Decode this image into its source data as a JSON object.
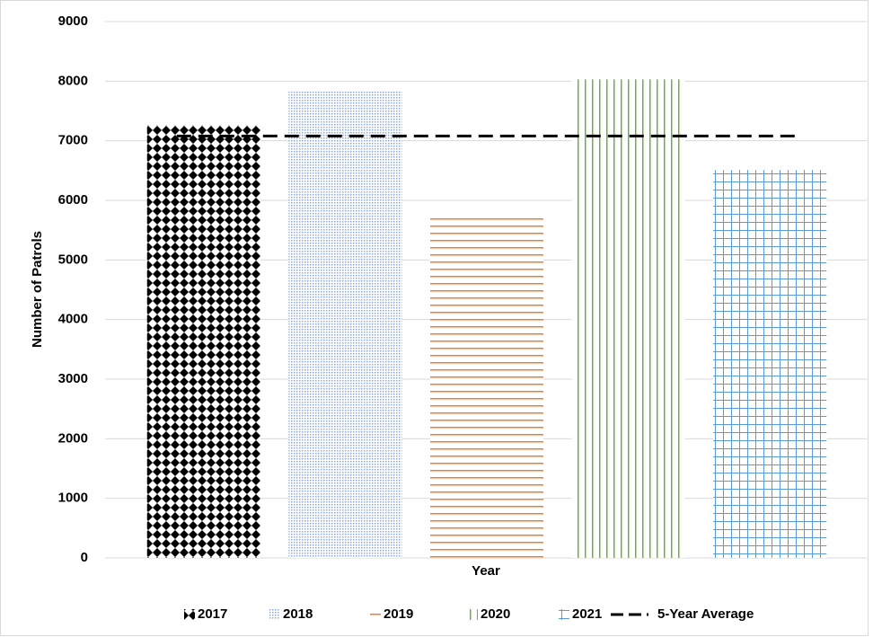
{
  "chart_data": {
    "type": "bar",
    "x_label": "Year",
    "y_label": "Number of Patrols",
    "categories": [
      "2017",
      "2018",
      "2019",
      "2020",
      "2021"
    ],
    "values": [
      7260,
      7830,
      5770,
      8030,
      6510
    ],
    "colors": [
      "#000000",
      "#8ea9db",
      "#ed7d31",
      "#70ad47",
      "#5b9bd5"
    ],
    "patterns": [
      "diamond",
      "dots",
      "hlines",
      "vlines",
      "grid"
    ],
    "average": {
      "name": "5-Year Average",
      "value": 7080,
      "color": "#000000"
    },
    "ylim": [
      0,
      9000
    ],
    "yticks": [
      0,
      1000,
      2000,
      3000,
      4000,
      5000,
      6000,
      7000,
      8000,
      9000
    ],
    "grid": true
  }
}
